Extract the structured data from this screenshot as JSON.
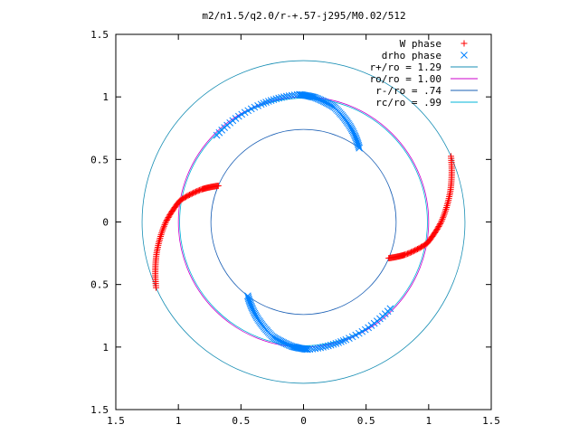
{
  "chart_data": {
    "type": "scatter",
    "title": "m2/n1.5/q2.0/r-+.57-j295/M0.02/512",
    "xlabel": "",
    "ylabel": "",
    "xlim": [
      -1.5,
      1.5
    ],
    "ylim": [
      -1.5,
      1.5
    ],
    "x_ticks": [
      -1.5,
      -1,
      -0.5,
      0,
      0.5,
      1,
      1.5
    ],
    "x_tick_labels": [
      "1.5",
      "1",
      "0.5",
      "0",
      "0.5",
      "1",
      "1.5"
    ],
    "y_ticks": [
      1.5,
      1,
      0.5,
      0,
      -0.5,
      -1,
      -1.5
    ],
    "y_tick_labels": [
      "1.5",
      "1",
      "0.5",
      "0",
      "0.5",
      "1",
      "1.5"
    ],
    "grid": false,
    "legend_position": "top-right",
    "series": [
      {
        "name": "W phase",
        "kind": "points",
        "marker": "plus",
        "color": "#ff0000",
        "curves": [
          {
            "r": [
              0.74,
              0.85,
              1.0,
              1.1,
              1.2,
              1.29
            ],
            "theta_deg": [
              -23,
              -18,
              -10,
              0,
              12,
              24
            ]
          },
          {
            "r": [
              0.74,
              0.85,
              1.0,
              1.1,
              1.2,
              1.29
            ],
            "theta_deg": [
              157,
              162,
              170,
              180,
              192,
              204
            ]
          }
        ]
      },
      {
        "name": "drho phase",
        "kind": "points",
        "marker": "cross",
        "color": "#0080ff",
        "curves": [
          {
            "r": [
              0.74,
              0.85,
              0.95,
              1.0,
              1.02,
              1.0,
              0.98
            ],
            "theta_deg": [
              53,
              64,
              75,
              85,
              92,
              110,
              135
            ]
          },
          {
            "r": [
              0.74,
              0.85,
              0.95,
              1.0,
              1.02,
              1.0,
              0.98
            ],
            "theta_deg": [
              233,
              244,
              255,
              265,
              272,
              290,
              315
            ]
          }
        ]
      },
      {
        "name": "r+/ro = 1.29",
        "kind": "circle",
        "r": 1.29,
        "color": "#1a8fb5"
      },
      {
        "name": "ro/ro = 1.00",
        "kind": "circle",
        "r": 1.0,
        "color": "#cc00cc"
      },
      {
        "name": "r-/ro = .74",
        "kind": "circle",
        "r": 0.74,
        "color": "#1a5fb5"
      },
      {
        "name": "rc/ro = .99",
        "kind": "circle",
        "r": 0.99,
        "color": "#00b4d8"
      }
    ]
  }
}
